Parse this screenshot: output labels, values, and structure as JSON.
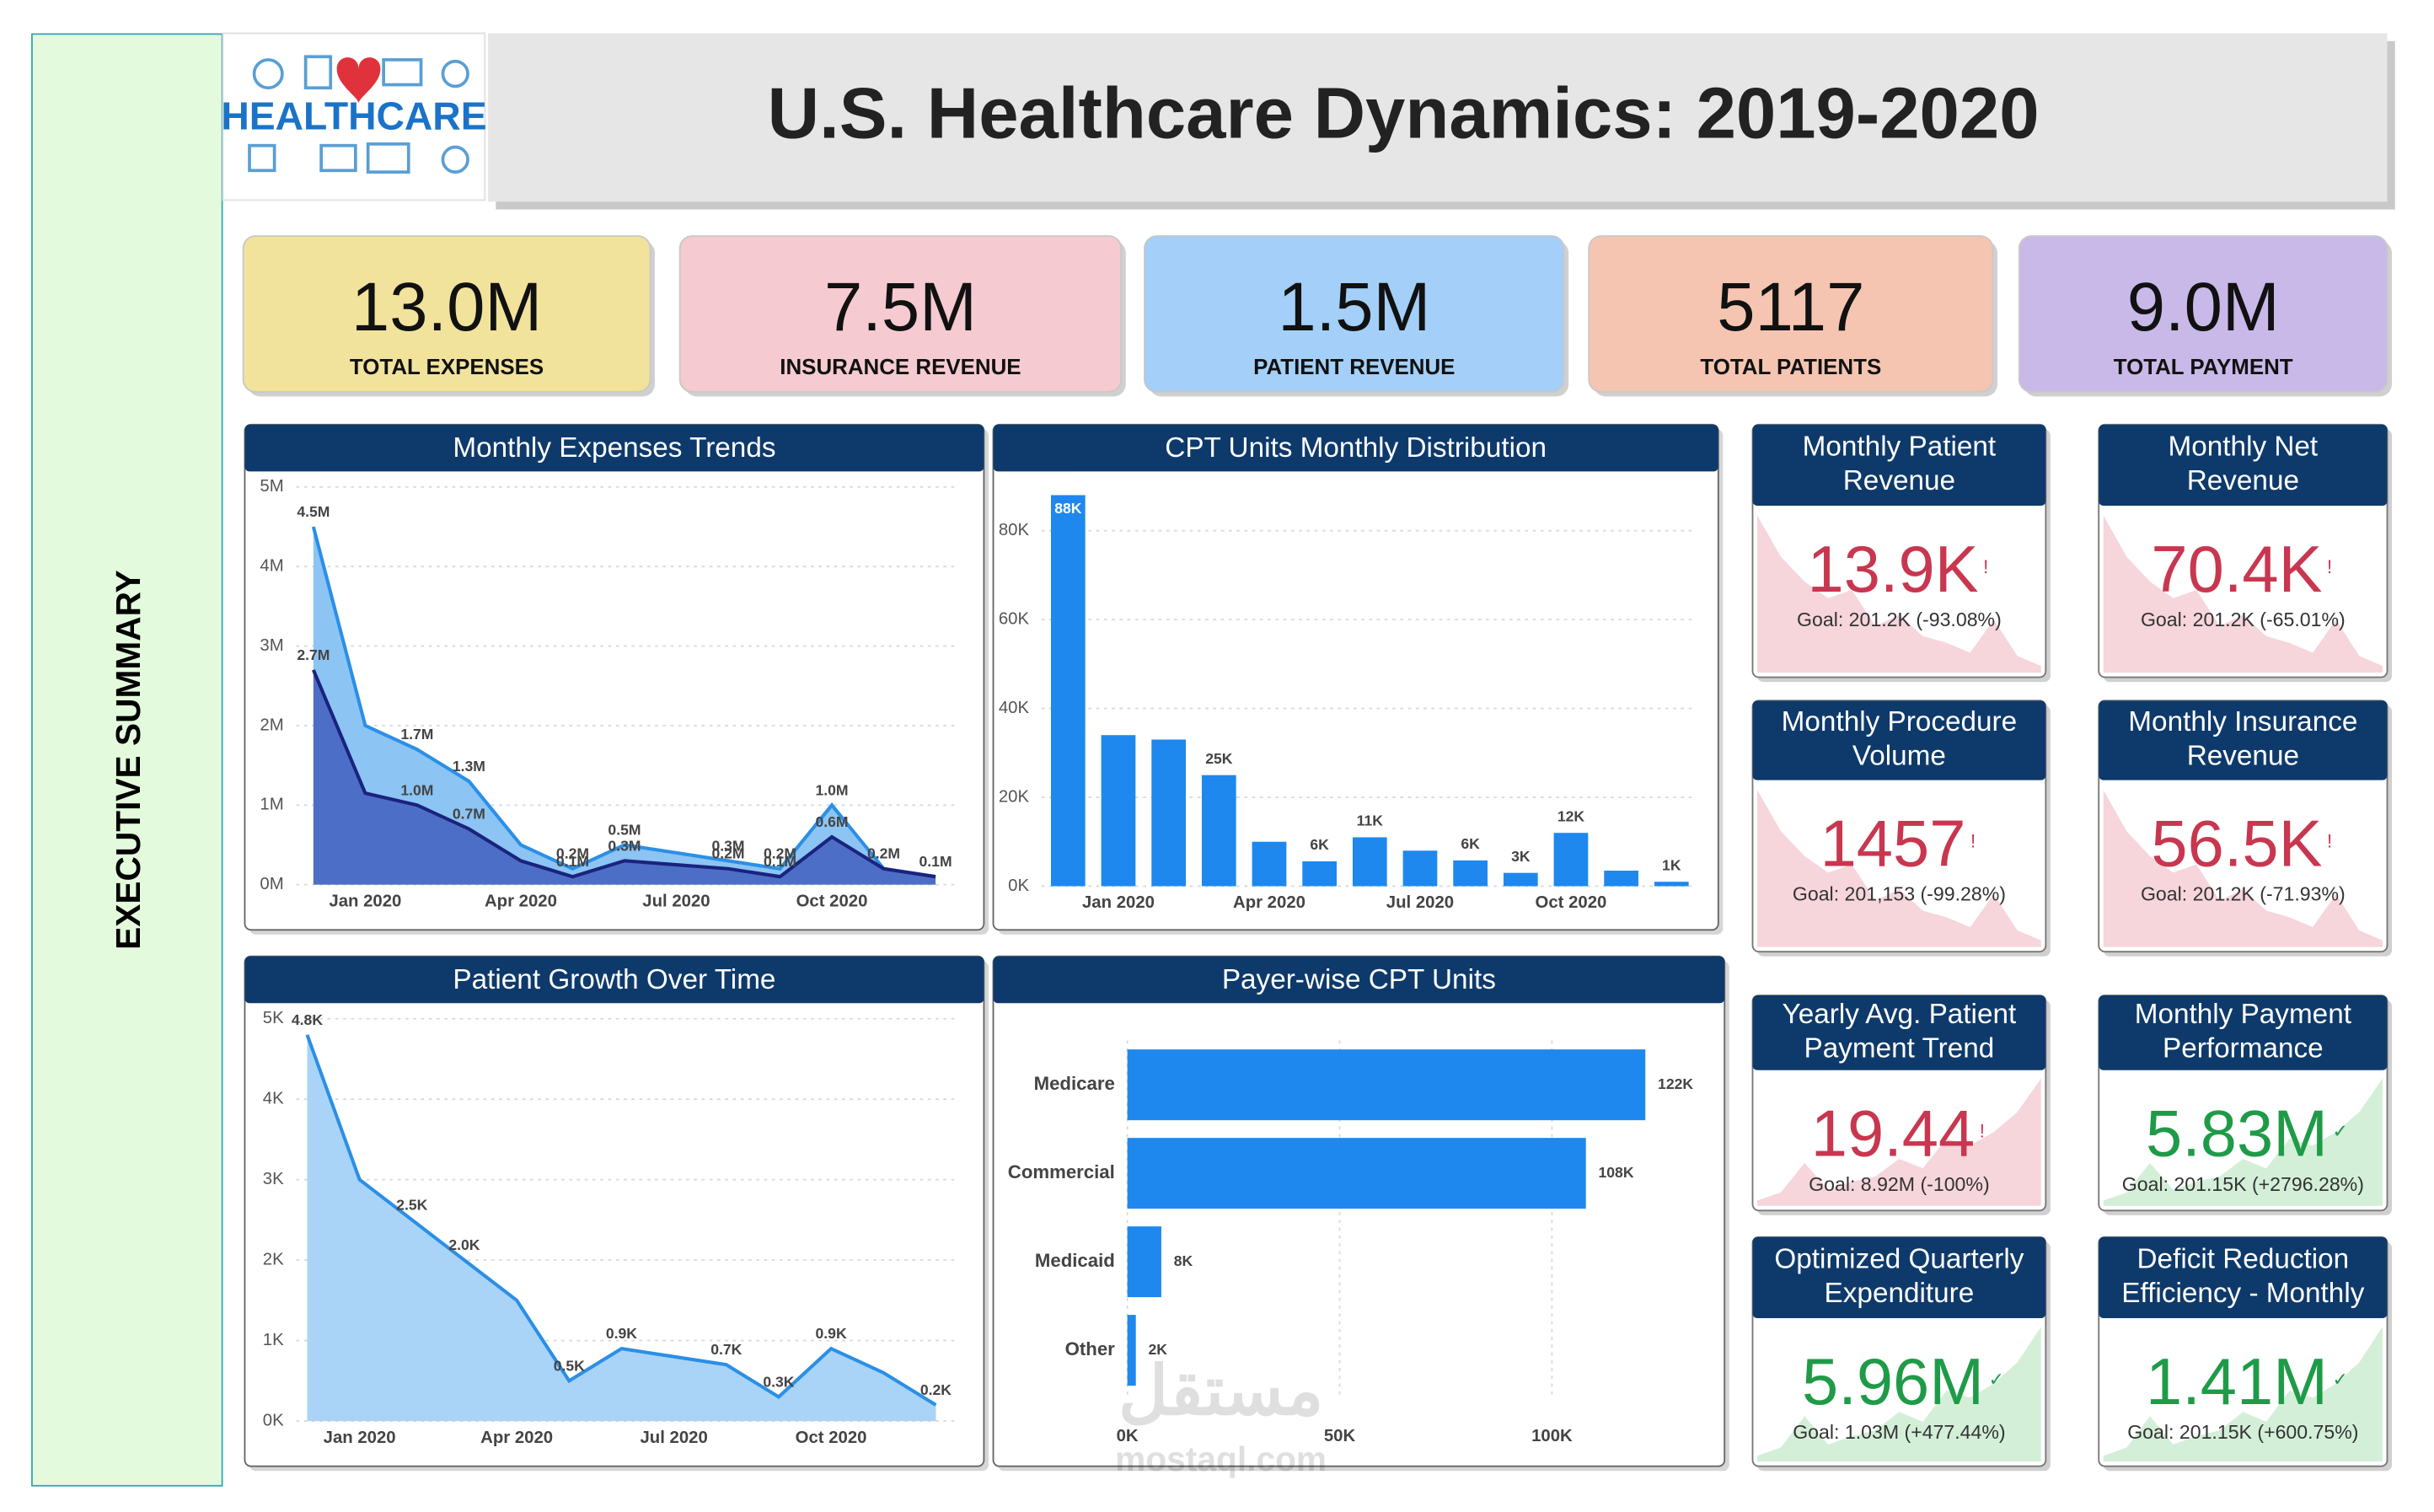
{
  "header": {
    "title": "U.S. Healthcare Dynamics: 2019-2020",
    "logo_text": "HEALTHCARE"
  },
  "sidebar": {
    "label": "EXECUTIVE SUMMARY"
  },
  "kpis": [
    {
      "value": "13.0M",
      "label": "TOTAL EXPENSES",
      "color": "#f1e39c"
    },
    {
      "value": "7.5M",
      "label": "INSURANCE REVENUE",
      "color": "#f5cad0"
    },
    {
      "value": "1.5M",
      "label": "PATIENT REVENUE",
      "color": "#a3cff8"
    },
    {
      "value": "5117",
      "label": "TOTAL PATIENTS",
      "color": "#f5c5b1"
    },
    {
      "value": "9.0M",
      "label": "TOTAL PAYMENT",
      "color": "#c9b9e9"
    }
  ],
  "chart_data": [
    {
      "type": "area",
      "title": "Monthly Expenses Trends",
      "categories": [
        null,
        "Jan 2020",
        null,
        null,
        "Apr 2020",
        null,
        null,
        "Jul 2020",
        null,
        null,
        "Oct 2020",
        null,
        null
      ],
      "series": [
        {
          "color": "#2b8fe6",
          "fill": "#8cc4f4",
          "values": [
            4500000,
            2000000,
            1700000,
            1300000,
            500000,
            200000,
            500000,
            400000,
            300000,
            200000,
            1000000,
            200000,
            100000
          ],
          "value_labels": [
            "4.5M",
            null,
            "1.7M",
            "1.3M",
            null,
            "0.2M",
            "0.5M",
            null,
            "0.3M",
            "0.2M",
            "1.0M",
            "0.2M",
            "0.1M"
          ]
        },
        {
          "color": "#1a237e",
          "fill": "#4d6ec6",
          "values": [
            2700000,
            1150000,
            1000000,
            700000,
            300000,
            100000,
            300000,
            250000,
            200000,
            100000,
            600000,
            200000,
            100000
          ],
          "value_labels": [
            "2.7M",
            null,
            "1.0M",
            "0.7M",
            null,
            "0.1M",
            "0.3M",
            null,
            "0.2M",
            "0.1M",
            "0.6M",
            null,
            null
          ]
        }
      ],
      "ylim": [
        0,
        5000000
      ],
      "yticks": [
        {
          "value": 0,
          "label": "0M"
        },
        {
          "value": 1000000,
          "label": "1M"
        },
        {
          "value": 2000000,
          "label": "2M"
        },
        {
          "value": 3000000,
          "label": "3M"
        },
        {
          "value": 4000000,
          "label": "4M"
        },
        {
          "value": 5000000,
          "label": "5M"
        }
      ],
      "grid": true
    },
    {
      "type": "bar",
      "title": "CPT Units Monthly Distribution",
      "categories": [
        null,
        "Jan 2020",
        null,
        null,
        "Apr 2020",
        null,
        null,
        "Jul 2020",
        null,
        null,
        "Oct 2020",
        null,
        null
      ],
      "values": [
        88000,
        34000,
        33000,
        25000,
        10000,
        5600,
        11000,
        8000,
        5800,
        3000,
        12000,
        3500,
        1000
      ],
      "value_labels": [
        "88K",
        null,
        null,
        "25K",
        null,
        "6K",
        "11K",
        null,
        "6K",
        "3K",
        "12K",
        null,
        "1K"
      ],
      "color": "#1e88ee",
      "ylim": [
        0,
        90000
      ],
      "yticks": [
        {
          "value": 0,
          "label": "0K"
        },
        {
          "value": 20000,
          "label": "20K"
        },
        {
          "value": 40000,
          "label": "40K"
        },
        {
          "value": 60000,
          "label": "60K"
        },
        {
          "value": 80000,
          "label": "80K"
        }
      ],
      "grid": true
    },
    {
      "type": "area",
      "title": "Patient Growth Over Time",
      "categories": [
        null,
        "Jan 2020",
        null,
        null,
        "Apr 2020",
        null,
        null,
        "Jul 2020",
        null,
        null,
        "Oct 2020",
        null,
        null
      ],
      "series": [
        {
          "color": "#2b8fe6",
          "fill": "#a9d4f7",
          "values": [
            4800,
            3000,
            2500,
            2000,
            1500,
            500,
            900,
            800,
            700,
            300,
            900,
            600,
            200
          ],
          "value_labels": [
            "4.8K",
            null,
            "2.5K",
            "2.0K",
            null,
            "0.5K",
            "0.9K",
            null,
            "0.7K",
            "0.3K",
            "0.9K",
            null,
            "0.2K"
          ]
        }
      ],
      "ylim": [
        0,
        5000
      ],
      "yticks": [
        {
          "value": 0,
          "label": "0K"
        },
        {
          "value": 1000,
          "label": "1K"
        },
        {
          "value": 2000,
          "label": "2K"
        },
        {
          "value": 3000,
          "label": "3K"
        },
        {
          "value": 4000,
          "label": "4K"
        },
        {
          "value": 5000,
          "label": "5K"
        }
      ],
      "grid": true
    },
    {
      "type": "hbar",
      "title": "Payer-wise CPT Units",
      "categories": [
        "Medicare",
        "Commercial",
        "Medicaid",
        "Other"
      ],
      "values": [
        122000,
        108000,
        8000,
        2000
      ],
      "value_labels": [
        "122K",
        "108K",
        "8K",
        "2K"
      ],
      "color": "#1e88ee",
      "xlim": [
        0,
        130000
      ],
      "xticks": [
        {
          "value": 0,
          "label": "0K"
        },
        {
          "value": 50000,
          "label": "50K"
        },
        {
          "value": 100000,
          "label": "100K"
        }
      ],
      "grid": true
    }
  ],
  "cards": [
    {
      "title": [
        "Monthly Patient",
        "Revenue"
      ],
      "value": "13.9K",
      "icon": "!",
      "goal": "Goal: 201.2K (-93.08%)",
      "color": "#c8374f",
      "fill": "#f6d5db",
      "spark": "down"
    },
    {
      "title": [
        "Monthly Net",
        "Revenue"
      ],
      "value": "70.4K",
      "icon": "!",
      "goal": "Goal: 201.2K (-65.01%)",
      "color": "#c8374f",
      "fill": "#f6d5db",
      "spark": "down"
    },
    {
      "title": [
        "Monthly Procedure",
        "Volume"
      ],
      "value": "1457",
      "icon": "!",
      "goal": "Goal: 201,153 (-99.28%)",
      "color": "#c8374f",
      "fill": "#f6d5db",
      "spark": "down"
    },
    {
      "title": [
        "Monthly Insurance",
        "Revenue"
      ],
      "value": "56.5K",
      "icon": "!",
      "goal": "Goal: 201.2K (-71.93%)",
      "color": "#c8374f",
      "fill": "#f6d5db",
      "spark": "down"
    },
    {
      "title": [
        "Yearly Avg. Patient",
        "Payment Trend"
      ],
      "value": "19.44",
      "icon": "!",
      "goal": "Goal: 8.92M (-100%)",
      "color": "#c8374f",
      "fill": "#f6d5db",
      "spark": "up"
    },
    {
      "title": [
        "Monthly Payment",
        "Performance"
      ],
      "value": "5.83M",
      "icon": "✓",
      "goal": "Goal: 201.15K (+2796.28%)",
      "color": "#1f9b48",
      "fill": "#d3efd8",
      "spark": "up"
    },
    {
      "title": [
        "Optimized Quarterly",
        "Expenditure"
      ],
      "value": "5.96M",
      "icon": "✓",
      "goal": "Goal: 1.03M (+477.44%)",
      "color": "#1f9b48",
      "fill": "#d3efd8",
      "spark": "up"
    },
    {
      "title": [
        "Deficit Reduction",
        "Efficiency - Monthly"
      ],
      "value": "1.41M",
      "icon": "✓",
      "goal": "Goal: 201.15K (+600.75%)",
      "color": "#1f9b48",
      "fill": "#d3efd8",
      "spark": "up"
    }
  ],
  "watermark": [
    "مستقل",
    "mostaql.com"
  ]
}
